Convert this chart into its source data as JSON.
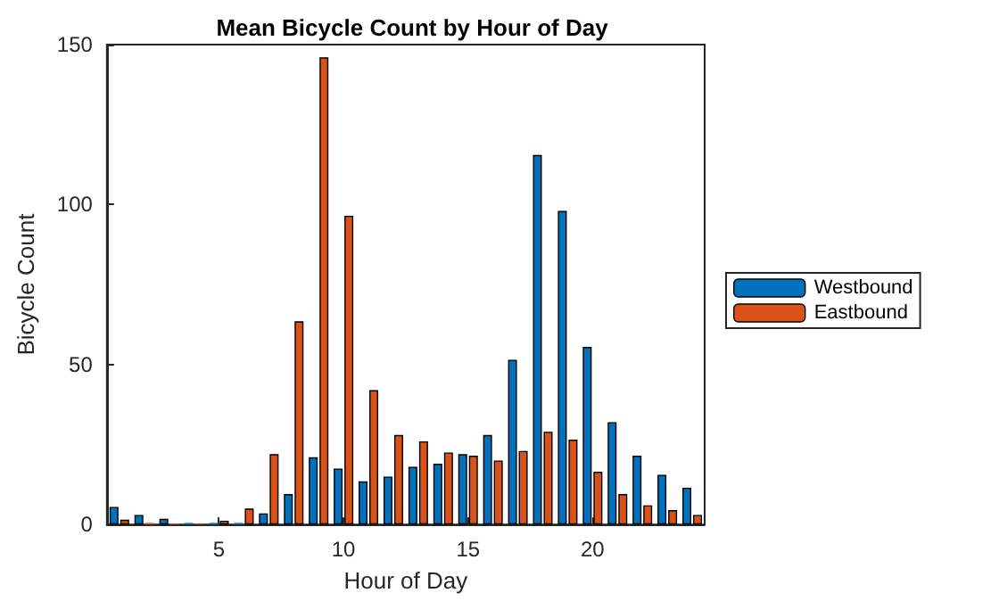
{
  "chart_data": {
    "type": "bar",
    "title": "Mean Bicycle Count by Hour of Day",
    "xlabel": "Hour of Day",
    "ylabel": "Bicycle Count",
    "x": [
      1,
      2,
      3,
      4,
      5,
      6,
      7,
      8,
      9,
      10,
      11,
      12,
      13,
      14,
      15,
      16,
      17,
      18,
      19,
      20,
      21,
      22,
      23,
      24
    ],
    "series": [
      {
        "name": "Westbound",
        "color": "#0072bd",
        "values": [
          5.5,
          3,
          1.8,
          0.5,
          0.5,
          0.5,
          3.5,
          9.5,
          21,
          17.5,
          13.5,
          15,
          18,
          19,
          22,
          28,
          51.5,
          115.5,
          98,
          55.5,
          32,
          21.5,
          15.5,
          11.5
        ]
      },
      {
        "name": "Eastbound",
        "color": "#d95319",
        "values": [
          1.5,
          0.5,
          0.3,
          0.2,
          1.2,
          5,
          22,
          63.5,
          146,
          96.5,
          42,
          28,
          26,
          22.5,
          21.5,
          20,
          23,
          29,
          26.5,
          16.5,
          9.5,
          6,
          4.5,
          3
        ]
      }
    ],
    "xlim": [
      0.5,
      24.5
    ],
    "xticks": [
      5,
      10,
      15,
      20
    ],
    "ylim": [
      0,
      150
    ],
    "yticks": [
      0,
      50,
      100,
      150
    ],
    "grid": false,
    "legend": "right"
  }
}
